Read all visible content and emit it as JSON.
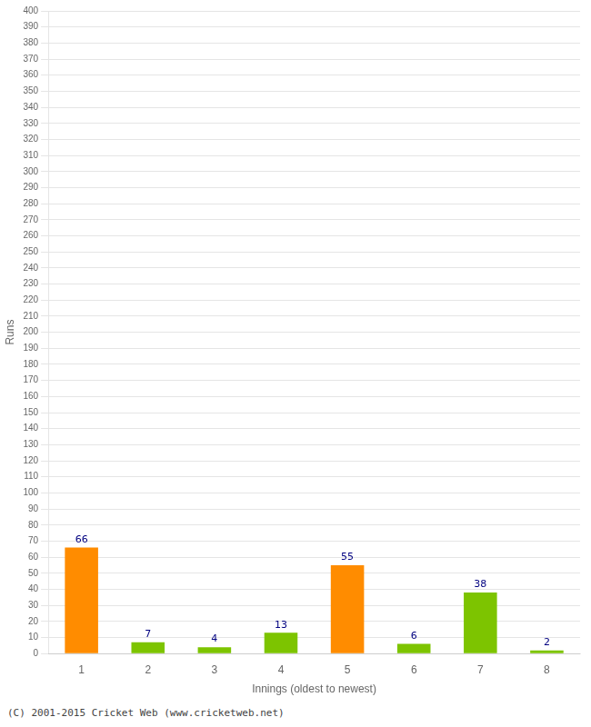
{
  "chart_data": {
    "type": "bar",
    "categories": [
      "1",
      "2",
      "3",
      "4",
      "5",
      "6",
      "7",
      "8"
    ],
    "values": [
      66,
      7,
      4,
      13,
      55,
      6,
      38,
      2
    ],
    "colors": [
      "#FF8C00",
      "#7DC400",
      "#7DC400",
      "#7DC400",
      "#FF8C00",
      "#7DC400",
      "#7DC400",
      "#7DC400"
    ],
    "xlabel": "Innings (oldest to newest)",
    "ylabel": "Runs",
    "ylim": [
      0,
      400
    ],
    "yticks": [
      0,
      10,
      20,
      30,
      40,
      50,
      60,
      70,
      80,
      90,
      100,
      110,
      120,
      130,
      140,
      150,
      160,
      170,
      180,
      190,
      200,
      210,
      220,
      230,
      240,
      250,
      260,
      270,
      280,
      290,
      300,
      310,
      320,
      330,
      340,
      350,
      360,
      370,
      380,
      390,
      400
    ],
    "grid": true,
    "data_labels": true,
    "annotations": [
      "(C) 2001-2015 Cricket Web (www.cricketweb.net)"
    ]
  }
}
